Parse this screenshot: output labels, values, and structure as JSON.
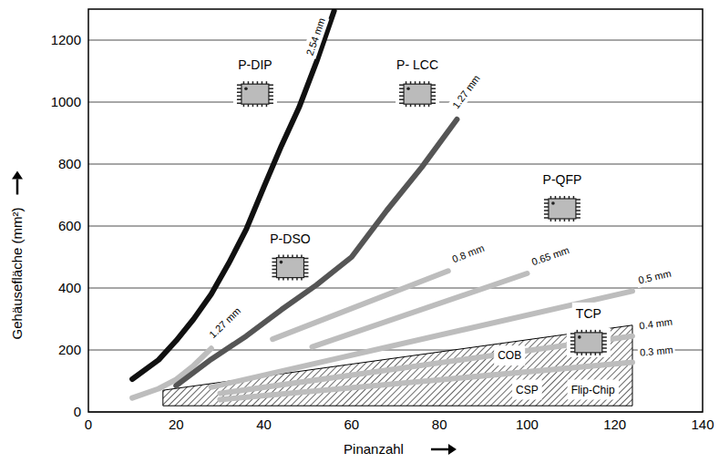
{
  "chart_data": {
    "type": "line",
    "x_label": "Pinanzahl",
    "y_label": "Gehäusefläche (mm²)",
    "xlim": [
      0,
      140
    ],
    "xticks": [
      0,
      20,
      40,
      60,
      80,
      100,
      120,
      140
    ],
    "ylim": [
      0,
      1300
    ],
    "yticks": [
      0,
      200,
      400,
      600,
      800,
      1000,
      1200
    ],
    "grid": "y",
    "series": [
      {
        "name": "2.54 mm",
        "color": "#111111",
        "x": [
          10,
          16,
          20,
          24,
          28,
          32,
          36,
          40,
          44,
          48,
          52,
          56
        ],
        "values": [
          106,
          168,
          230,
          300,
          380,
          480,
          590,
          726,
          859,
          982,
          1130,
          1294
        ]
      },
      {
        "name": "1.27 mm",
        "color": "#555555",
        "x": [
          20,
          28,
          36,
          44,
          52,
          60,
          68,
          76,
          84
        ],
        "values": [
          85,
          170,
          245,
          330,
          410,
          500,
          650,
          790,
          944
        ]
      },
      {
        "name": "1.27 mm",
        "color": "#bdbdbd",
        "x": [
          10,
          16,
          20,
          24,
          28
        ],
        "values": [
          45,
          75,
          105,
          150,
          205
        ]
      },
      {
        "name": "0.8 mm",
        "color": "#bdbdbd",
        "x": [
          42,
          82
        ],
        "values": [
          235,
          455
        ]
      },
      {
        "name": "0.65 mm",
        "color": "#bdbdbd",
        "x": [
          51,
          100
        ],
        "values": [
          210,
          447
        ]
      },
      {
        "name": "0.5 mm",
        "color": "#bdbdbd",
        "x": [
          28,
          124
        ],
        "values": [
          80,
          390
        ]
      },
      {
        "name": "0.4 mm",
        "color": "#bdbdbd",
        "x": [
          30,
          124
        ],
        "values": [
          60,
          245
        ]
      },
      {
        "name": "0.3 mm",
        "color": "#bdbdbd",
        "x": [
          30,
          124
        ],
        "values": [
          40,
          160
        ]
      }
    ],
    "region": {
      "x": [
        17,
        124
      ],
      "lower": [
        20,
        20
      ],
      "upper": [
        70,
        280
      ],
      "labels": [
        {
          "text": "COB",
          "x": 96,
          "y": 182
        },
        {
          "text": "CSP",
          "x": 100,
          "y": 72
        },
        {
          "text": "Flip-Chip",
          "x": 115,
          "y": 72
        }
      ]
    },
    "packages": [
      {
        "text": "P-DIP",
        "x": 38,
        "y": 1120
      },
      {
        "text": "P- LCC",
        "x": 75,
        "y": 1120
      },
      {
        "text": "P-DSO",
        "x": 46,
        "y": 560
      },
      {
        "text": "P-QFP",
        "x": 108,
        "y": 750
      },
      {
        "text": "TCP",
        "x": 114,
        "y": 318
      }
    ]
  }
}
